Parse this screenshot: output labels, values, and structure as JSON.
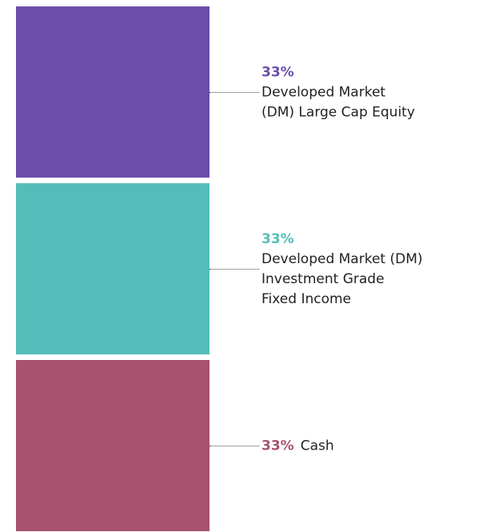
{
  "chart_data": {
    "type": "stacked_bar",
    "series": [
      {
        "name": "Developed Market\n(DM) Large Cap Equity",
        "color": "#6b4fab",
        "values": [
          33
        ],
        "value_labels": [
          "33%"
        ]
      },
      {
        "name": "Developed Market (DM)\nInvestment Grade\nFixed Income",
        "color": "#55bdb9",
        "values": [
          33
        ],
        "value_labels": [
          "33%"
        ]
      },
      {
        "name": "Cash",
        "color": "#a85270",
        "values": [
          33
        ],
        "value_labels": [
          "33%"
        ]
      }
    ]
  }
}
